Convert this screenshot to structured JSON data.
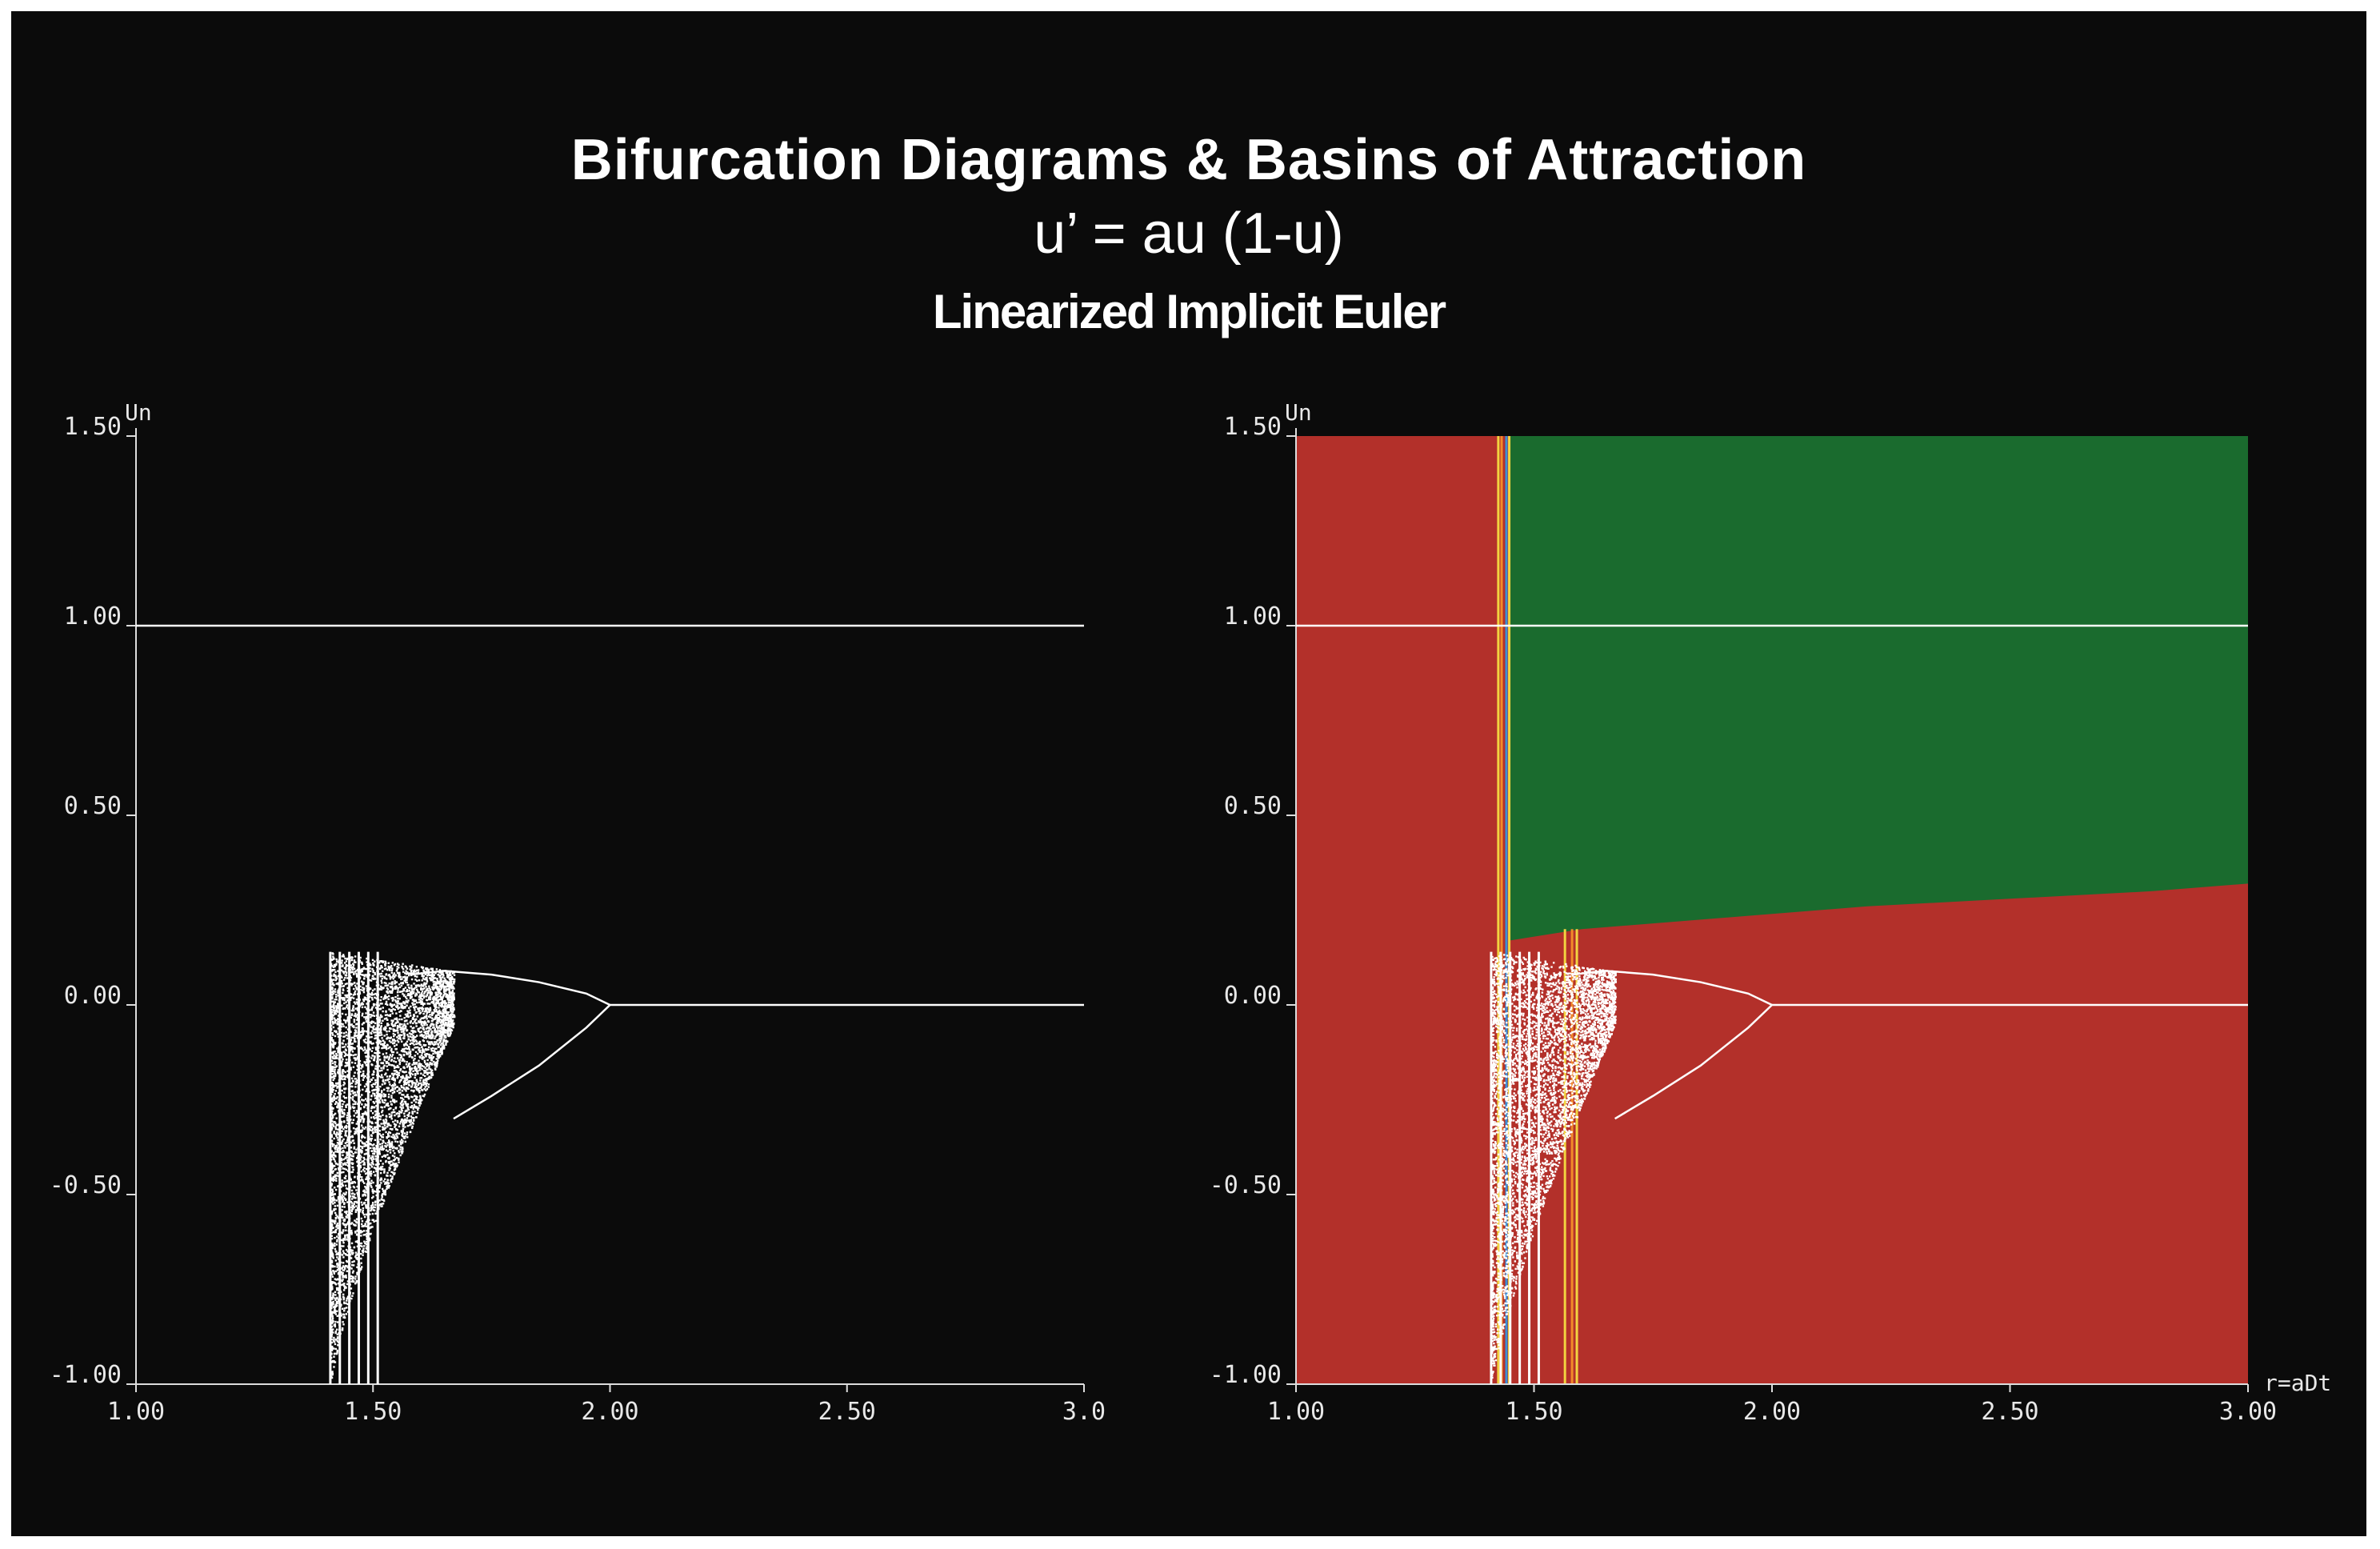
{
  "header": {
    "title": "Bifurcation Diagrams & Basins of Attraction",
    "equation": "u’ = au (1-u)",
    "method": "Linearized Implicit Euler"
  },
  "colors": {
    "background": "#0b0b0b",
    "trace": "#ffffff",
    "basin_red": "#b3302a",
    "basin_green": "#1a6b2e",
    "line_yellow": "#f2d340",
    "line_orange": "#f28a2a",
    "line_blue": "#3a8fd6"
  },
  "chart_data": [
    {
      "type": "scatter",
      "panel": "left",
      "title": "",
      "xlabel": "",
      "ylabel": "Un",
      "xlim": [
        1.0,
        3.0
      ],
      "ylim": [
        -1.0,
        1.5
      ],
      "x_ticks": [
        "1.00",
        "1.50",
        "2.00",
        "2.50",
        "3.0"
      ],
      "y_ticks": [
        "1.50",
        "1.00",
        "0.50",
        "0.00",
        "-0.50",
        "-1.00"
      ],
      "series": [
        {
          "kind": "fixed_point",
          "y": 1.0,
          "x_range": [
            1.0,
            3.0
          ]
        },
        {
          "kind": "fixed_point",
          "y": 0.0,
          "x_range": [
            2.0,
            3.0
          ]
        },
        {
          "kind": "period2_upper",
          "x": [
            1.58,
            1.65,
            1.75,
            1.85,
            1.95,
            2.0
          ],
          "y": [
            0.08,
            0.09,
            0.08,
            0.06,
            0.03,
            0.0
          ]
        },
        {
          "kind": "period2_lower",
          "x": [
            1.67,
            1.75,
            1.85,
            1.95,
            2.0
          ],
          "y": [
            -0.3,
            -0.24,
            -0.16,
            -0.06,
            0.0
          ]
        },
        {
          "kind": "chaotic_band",
          "x_range": [
            1.41,
            1.67
          ],
          "y_top": 0.14,
          "y_bottom": -1.0
        }
      ],
      "grid": false
    },
    {
      "type": "heatmap",
      "panel": "right",
      "title": "",
      "xlabel": "r=aDt",
      "ylabel": "Un",
      "xlim": [
        1.0,
        3.0
      ],
      "ylim": [
        -1.0,
        1.5
      ],
      "x_ticks": [
        "1.00",
        "1.50",
        "2.00",
        "2.50",
        "3.00"
      ],
      "y_ticks": [
        "1.50",
        "1.00",
        "0.50",
        "0.00",
        "-0.50",
        "-1.00"
      ],
      "regions": [
        {
          "basin": "red",
          "x_range": [
            1.0,
            1.42
          ],
          "y_range": [
            -1.0,
            1.5
          ]
        },
        {
          "basin": "green",
          "x_range": [
            1.45,
            3.0
          ],
          "y_boundary_x": [
            1.45,
            1.6,
            1.8,
            2.0,
            2.2,
            2.5,
            2.8,
            3.0
          ],
          "y_boundary": [
            0.17,
            0.2,
            0.22,
            0.24,
            0.26,
            0.28,
            0.3,
            0.32
          ]
        },
        {
          "basin": "red",
          "x_range": [
            1.42,
            3.0
          ],
          "below_boundary": true
        }
      ],
      "vertical_lines": [
        {
          "x": 1.425,
          "color": "yellow"
        },
        {
          "x": 1.432,
          "color": "orange"
        },
        {
          "x": 1.442,
          "color": "blue"
        },
        {
          "x": 1.448,
          "color": "yellow"
        },
        {
          "x": 1.565,
          "color": "yellow"
        },
        {
          "x": 1.58,
          "color": "orange"
        },
        {
          "x": 1.59,
          "color": "yellow"
        }
      ],
      "overlay": "bifurcation_diagram",
      "grid": false
    }
  ]
}
